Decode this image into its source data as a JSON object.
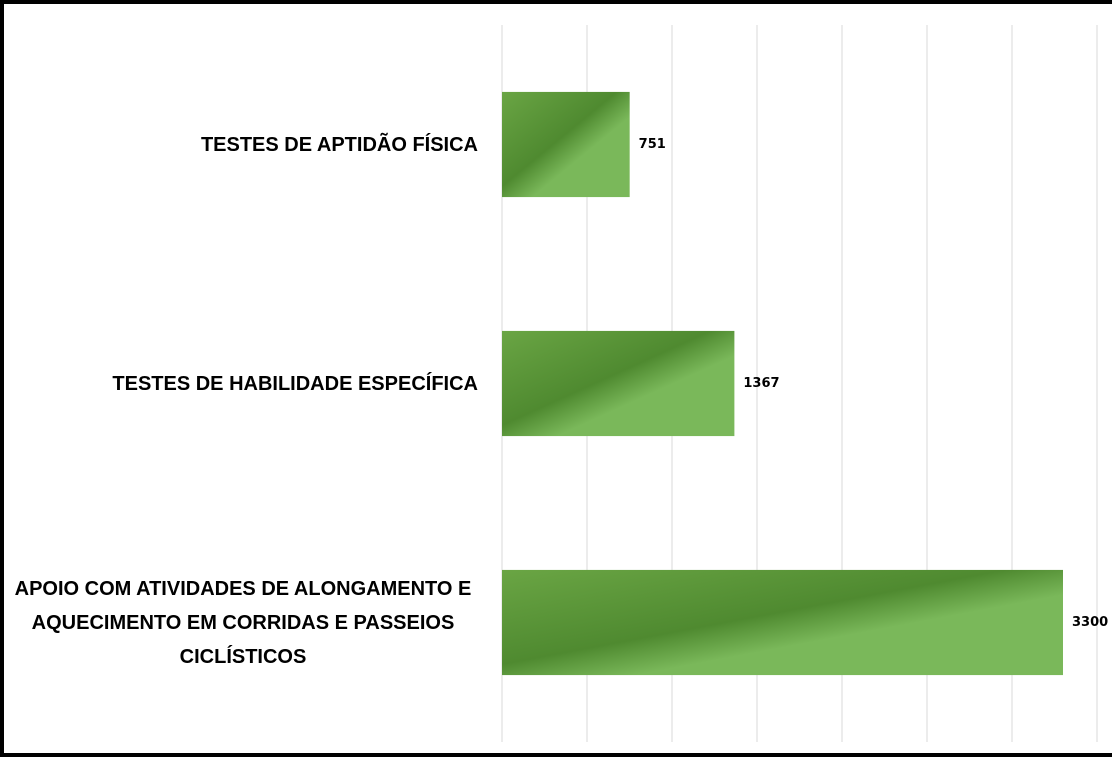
{
  "chart_data": {
    "type": "hbar",
    "categories": [
      "TESTES DE APTIDÃO FÍSICA",
      "TESTES DE HABILIDADE ESPECÍFICA",
      "APOIO COM ATIVIDADES DE ALONGAMENTO E AQUECIMENTO EM CORRIDAS E PASSEIOS CICLÍSTICOS"
    ],
    "values": [
      751,
      1367,
      3300
    ],
    "color": "#70ad47",
    "xlim": [
      0,
      3500
    ],
    "xticks": [
      0,
      500,
      1000,
      1500,
      2000,
      2500,
      3000,
      3500
    ],
    "grid": true
  }
}
